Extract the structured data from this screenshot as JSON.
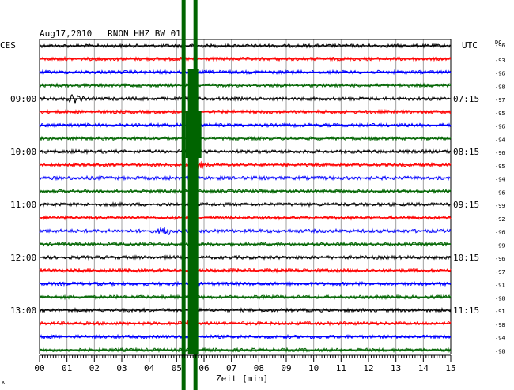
{
  "chart_data": {
    "type": "line",
    "title": "Aug17,2010   RNON HHZ BW 01",
    "left_axis_label": "CES",
    "right_axis_label": "UTC",
    "right_column_header": "DC",
    "xlabel": "Zeit [min]",
    "xlim": [
      0,
      15
    ],
    "x_ticks": [
      "00",
      "01",
      "02",
      "03",
      "04",
      "05",
      "06",
      "07",
      "08",
      "09",
      "10",
      "11",
      "12",
      "13",
      "14",
      "15"
    ],
    "left_hour_labels": [
      {
        "row": 4,
        "text": "09:00"
      },
      {
        "row": 8,
        "text": "10:00"
      },
      {
        "row": 12,
        "text": "11:00"
      },
      {
        "row": 16,
        "text": "12:00"
      },
      {
        "row": 20,
        "text": "13:00"
      }
    ],
    "right_hour_labels": [
      {
        "row": 4,
        "text": "07:15"
      },
      {
        "row": 8,
        "text": "08:15"
      },
      {
        "row": 12,
        "text": "09:15"
      },
      {
        "row": 16,
        "text": "10:15"
      },
      {
        "row": 20,
        "text": "11:15"
      }
    ],
    "row_colors": [
      "#000000",
      "#ff0000",
      "#0000ff",
      "#006400"
    ],
    "dc_offsets": [
      -96,
      -93,
      -96,
      -98,
      -97,
      -95,
      -96,
      -94,
      -96,
      -95,
      -94,
      -96,
      -99,
      -92,
      -96,
      -99,
      -96,
      -97,
      -91,
      -98,
      -91,
      -98,
      -94,
      -98
    ],
    "event": {
      "start_min": 5.5,
      "end_min": 6.0,
      "color": "#006400"
    },
    "row_count": 24,
    "grid": true
  },
  "corner_mark": "x"
}
